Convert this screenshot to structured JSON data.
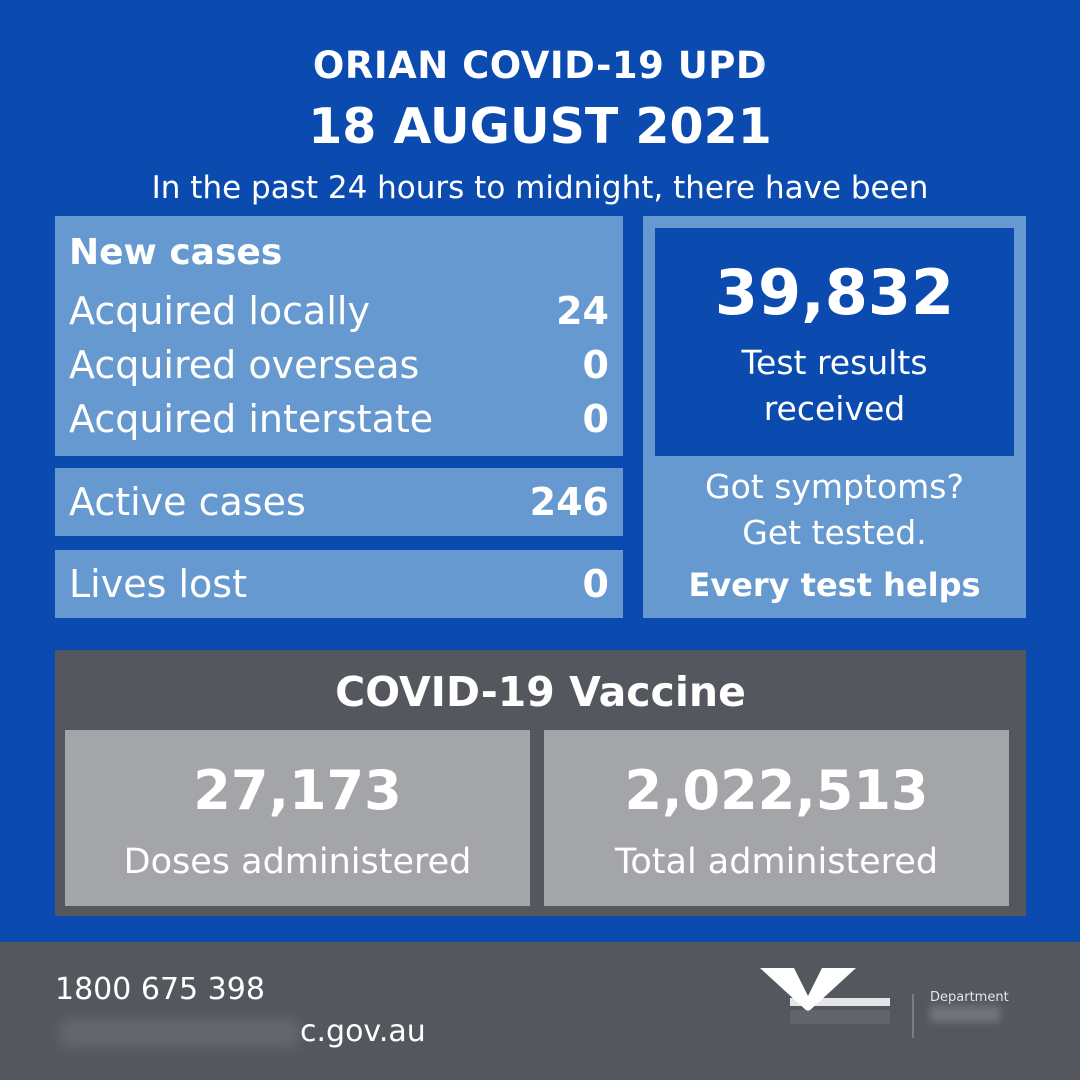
{
  "header": {
    "title": "ORIAN COVID-19 UPD",
    "date": "18 AUGUST 2021",
    "subtitle": "In the past 24 hours to midnight, there have been"
  },
  "new_cases": {
    "heading": "New cases",
    "rows": [
      {
        "label": "Acquired locally",
        "value": "24"
      },
      {
        "label": "Acquired overseas",
        "value": "0"
      },
      {
        "label": "Acquired interstate",
        "value": "0"
      }
    ]
  },
  "active_cases": {
    "label": "Active cases",
    "value": "246"
  },
  "lives_lost": {
    "label": "Lives lost",
    "value": "0"
  },
  "tests": {
    "number": "39,832",
    "label_line1": "Test results",
    "label_line2": "received",
    "symptoms_line1": "Got symptoms?",
    "symptoms_line2": "Get tested.",
    "emphasis": "Every test helps"
  },
  "vaccine": {
    "title": "COVID-19 Vaccine",
    "doses": {
      "number": "27,173",
      "label": "Doses administered"
    },
    "total": {
      "number": "2,022,513",
      "label": "Total administered"
    }
  },
  "footer": {
    "phone": "1800 675 398",
    "website": "c.gov.au",
    "dept_text": "Department"
  },
  "colors": {
    "background_blue": "#0b4bb0",
    "panel_light_blue": "#6699cf",
    "vaccine_grey": "#54575e",
    "card_grey": "#a4a5a8",
    "text_white": "#ffffff"
  }
}
